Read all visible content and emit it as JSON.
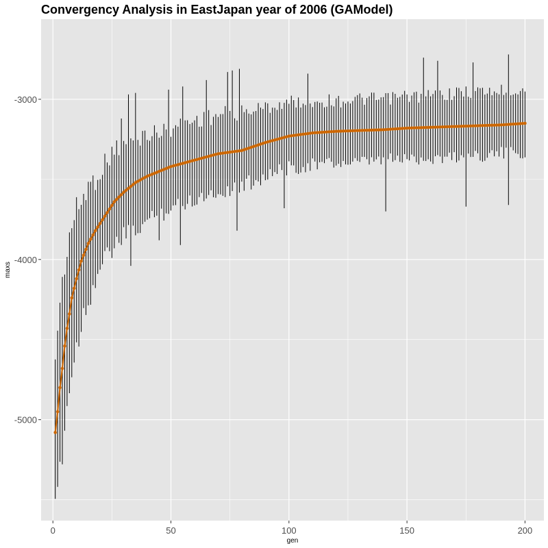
{
  "chart_data": {
    "type": "line",
    "title": "Convergency Analysis in  EastJapan year of 2006 (GAModel)",
    "xlabel": "gen",
    "ylabel": "maxs",
    "xlim": [
      -5,
      208
    ],
    "ylim": [
      -5630,
      -2500
    ],
    "x_ticks": [
      0,
      50,
      100,
      150,
      200
    ],
    "x_tick_labels": [
      "0",
      "50",
      "100",
      "150",
      "200"
    ],
    "y_ticks": [
      -5000,
      -4000,
      -3000
    ],
    "y_tick_labels": [
      "-5000",
      "-4000",
      "-3000"
    ],
    "grid": true,
    "x_range": [
      1,
      200
    ],
    "anchors_gen": [
      1,
      2,
      3,
      4,
      5,
      6,
      7,
      8,
      10,
      12,
      15,
      18,
      22,
      26,
      30,
      35,
      40,
      50,
      60,
      70,
      80,
      90,
      100,
      110,
      120,
      130,
      140,
      150,
      160,
      170,
      180,
      190,
      200
    ],
    "anchors_mean": [
      -5080,
      -4950,
      -4800,
      -4680,
      -4540,
      -4430,
      -4340,
      -4240,
      -4120,
      -4010,
      -3900,
      -3820,
      -3730,
      -3640,
      -3580,
      -3520,
      -3480,
      -3420,
      -3380,
      -3340,
      -3320,
      -3270,
      -3230,
      -3210,
      -3200,
      -3195,
      -3190,
      -3180,
      -3175,
      -3170,
      -3165,
      -3160,
      -3150
    ],
    "anchors_upper": [
      -4570,
      -4430,
      -4280,
      -4160,
      -4020,
      -3930,
      -3830,
      -3800,
      -3700,
      -3640,
      -3540,
      -3500,
      -3400,
      -3310,
      -3280,
      -3240,
      -3220,
      -3190,
      -3130,
      -3100,
      -3080,
      -3050,
      -3020,
      -3010,
      -3010,
      -3000,
      -3000,
      -2980,
      -2980,
      -2960,
      -2950,
      -2950,
      -2940
    ],
    "anchors_lower": [
      -5590,
      -5450,
      -5300,
      -5180,
      -5060,
      -4900,
      -4820,
      -4720,
      -4540,
      -4400,
      -4260,
      -4120,
      -4000,
      -3920,
      -3860,
      -3820,
      -3760,
      -3680,
      -3620,
      -3580,
      -3540,
      -3480,
      -3430,
      -3410,
      -3400,
      -3400,
      -3380,
      -3370,
      -3370,
      -3360,
      -3350,
      -3340,
      -3340
    ],
    "spikes": [
      {
        "gen": 29,
        "top": -3120
      },
      {
        "gen": 32,
        "top": -2970
      },
      {
        "gen": 35,
        "top": -2960
      },
      {
        "gen": 33,
        "bottom": -4040
      },
      {
        "gen": 45,
        "bottom": -3880
      },
      {
        "gen": 49,
        "top": -2940
      },
      {
        "gen": 55,
        "top": -2920
      },
      {
        "gen": 54,
        "bottom": -3910
      },
      {
        "gen": 65,
        "top": -2880
      },
      {
        "gen": 74,
        "top": -2830
      },
      {
        "gen": 76,
        "top": -2820
      },
      {
        "gen": 78,
        "bottom": -3820
      },
      {
        "gen": 79,
        "top": -2810
      },
      {
        "gen": 98,
        "bottom": -3680
      },
      {
        "gen": 108,
        "top": -2840
      },
      {
        "gen": 141,
        "bottom": -3700
      },
      {
        "gen": 157,
        "top": -2740
      },
      {
        "gen": 163,
        "top": -2760
      },
      {
        "gen": 175,
        "bottom": -3670
      },
      {
        "gen": 178,
        "top": -2770
      },
      {
        "gen": 193,
        "top": -2720
      },
      {
        "gen": 193,
        "bottom": -3660
      }
    ],
    "line_color": "#cc6600",
    "point_color": "#cc6600",
    "errorbar_color": "#000000",
    "panel_background": "#e5e5e5",
    "grid_color": "#ffffff"
  }
}
